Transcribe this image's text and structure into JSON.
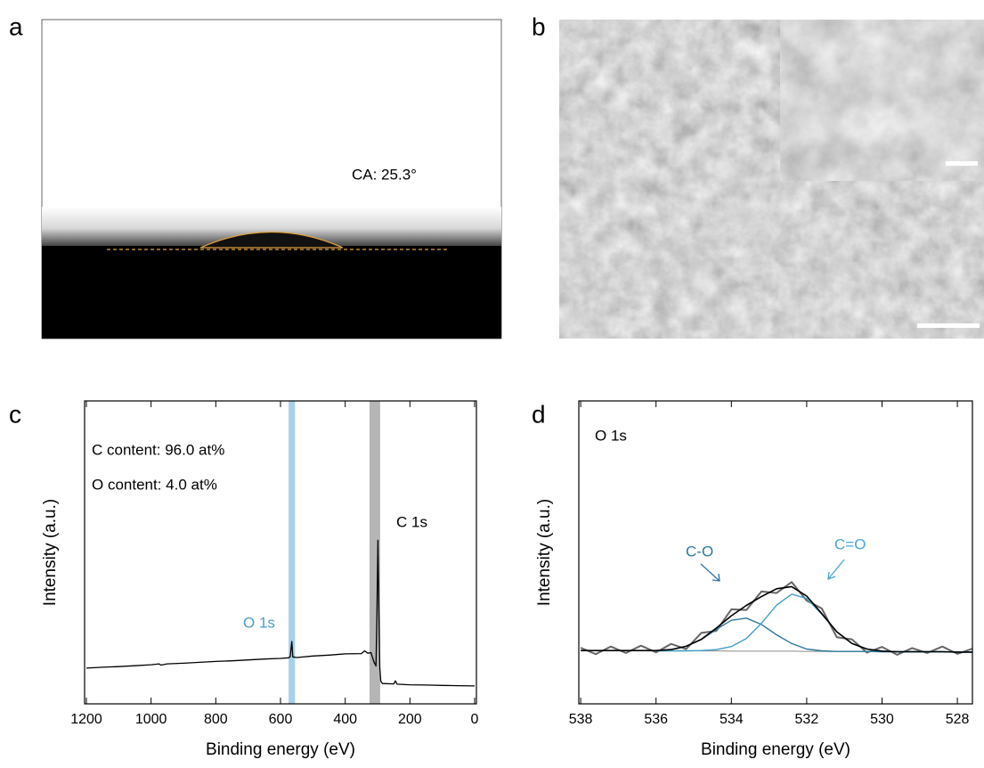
{
  "labels": [
    "a",
    "b",
    "c",
    "d"
  ],
  "photo_a": {
    "annotation": "CA: 25.3°"
  },
  "chart_data": [
    {
      "type": "line",
      "xlabel": "Binding energy (eV)",
      "ylabel": "Intensity (a.u.)",
      "xlim": [
        1205.5,
        -5.5
      ],
      "ylim": [
        0,
        100
      ],
      "xticks": [
        1200,
        1000,
        800,
        600,
        400,
        200,
        0
      ],
      "color": "#000000",
      "x": [
        1200,
        1150,
        1100,
        1050,
        1000,
        975,
        970,
        950,
        900,
        850,
        800,
        750,
        700,
        650,
        600,
        575,
        570,
        565,
        562,
        550,
        500,
        450,
        400,
        350,
        340,
        330,
        320,
        315,
        310,
        305,
        302,
        299,
        296,
        293,
        290,
        285,
        250,
        245,
        240,
        200,
        150,
        100,
        50,
        0
      ],
      "values": [
        11.8,
        12.1,
        12.3,
        12.6,
        12.9,
        13.2,
        12.8,
        13.2,
        13.4,
        13.7,
        14.0,
        14.2,
        14.5,
        14.8,
        15.0,
        15.2,
        15.6,
        20.6,
        15.5,
        15.3,
        15.8,
        16.1,
        16.5,
        16.6,
        17.5,
        16.7,
        16.9,
        15.0,
        13.5,
        12.5,
        30.0,
        54.0,
        30.0,
        12.0,
        7.5,
        6.7,
        6.6,
        7.6,
        6.5,
        6.3,
        6.2,
        6.1,
        6.0,
        5.9
      ],
      "bands": [
        {
          "range": [
            575,
            555
          ],
          "color": "#a8d0ea"
        },
        {
          "range": [
            325,
            292
          ],
          "color": "#b5b5b5"
        }
      ],
      "annotations": [
        {
          "text": "C content: 96.0 at%",
          "color": "#000000"
        },
        {
          "text": "O content: 4.0 at%",
          "color": "#000000"
        },
        {
          "text": "C 1s",
          "color": "#000000"
        },
        {
          "text": "O 1s",
          "color": "#4a9ccc"
        }
      ]
    },
    {
      "type": "line",
      "xlabel": "Binding energy (eV)",
      "ylabel": "Intensity (a.u.)",
      "xlim": [
        538.05,
        527.6
      ],
      "ylim": [
        0,
        100
      ],
      "xticks": [
        538,
        536,
        534,
        532,
        530,
        528
      ],
      "x": [
        538,
        537.6,
        537.2,
        536.8,
        536.4,
        536.0,
        535.6,
        535.2,
        534.8,
        534.4,
        534.0,
        533.6,
        533.2,
        532.8,
        532.4,
        532.0,
        531.6,
        531.2,
        530.8,
        530.4,
        530.0,
        529.6,
        529.2,
        528.8,
        528.4,
        528.0,
        527.6
      ],
      "series": [
        {
          "color": "#666666",
          "values": [
            18.5,
            16.4,
            18.9,
            16.8,
            19.2,
            17.0,
            19.8,
            18.1,
            23.4,
            24.1,
            31.2,
            31.0,
            37.1,
            36.6,
            40.2,
            34.1,
            31.5,
            22.0,
            21.3,
            16.9,
            18.8,
            16.2,
            18.4,
            16.8,
            18.9,
            16.5,
            18.2
          ]
        },
        {
          "color": "#999999",
          "values": [
            17.6,
            17.6,
            17.6,
            17.6,
            17.6,
            17.5,
            17.5,
            17.5,
            17.5,
            17.5,
            17.4,
            17.4,
            17.4,
            17.4,
            17.4,
            17.3,
            17.3,
            17.3,
            17.3,
            17.3,
            17.2,
            17.2,
            17.2,
            17.2,
            17.2,
            17.1,
            17.1
          ]
        },
        {
          "color": "#2b7a9e",
          "values": [
            17.6,
            17.6,
            17.6,
            17.6,
            17.6,
            17.6,
            17.9,
            19.0,
            21.2,
            24.6,
            27.6,
            28.3,
            26.2,
            22.8,
            19.9,
            18.1,
            17.5,
            17.3,
            17.3,
            17.3,
            17.2,
            17.2,
            17.2,
            17.2,
            17.2,
            17.1,
            17.1
          ]
        },
        {
          "color": "#3fa0c8",
          "values": [
            17.6,
            17.6,
            17.6,
            17.6,
            17.6,
            17.5,
            17.5,
            17.5,
            17.6,
            17.9,
            18.9,
            21.6,
            26.6,
            32.6,
            36.2,
            34.8,
            29.6,
            23.8,
            19.9,
            18.1,
            17.4,
            17.2,
            17.2,
            17.2,
            17.2,
            17.1,
            17.1
          ]
        },
        {
          "color": "#000000",
          "values": [
            17.6,
            17.6,
            17.6,
            17.6,
            17.6,
            17.6,
            17.9,
            19.0,
            21.3,
            25.0,
            29.1,
            32.5,
            35.4,
            38.0,
            38.7,
            35.6,
            29.8,
            23.8,
            19.9,
            18.1,
            17.4,
            17.2,
            17.2,
            17.2,
            17.2,
            17.1,
            17.1
          ]
        }
      ],
      "annotations": [
        {
          "text": "O 1s",
          "color": "#000000"
        },
        {
          "text": "C-O",
          "color": "#2b7a9e"
        },
        {
          "text": "C=O",
          "color": "#4aa8d0"
        }
      ]
    }
  ]
}
